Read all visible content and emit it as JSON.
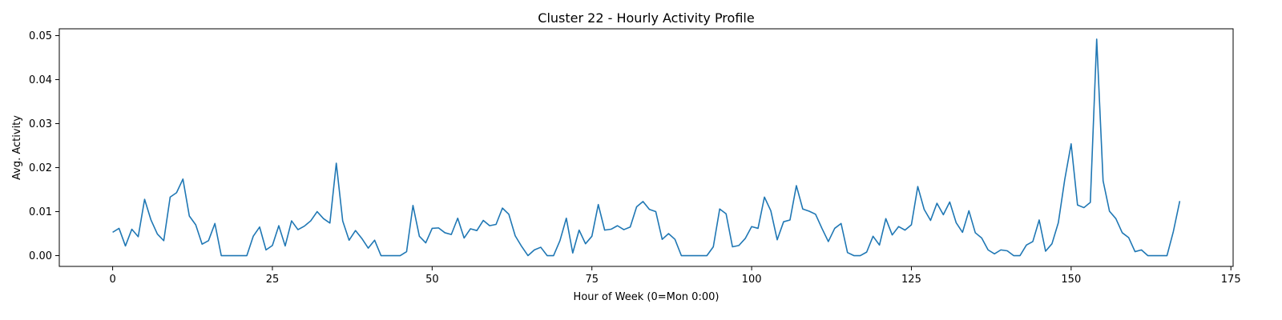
{
  "chart_data": {
    "type": "line",
    "title": "Cluster 22 - Hourly Activity Profile",
    "xlabel": "Hour of Week (0=Mon 0:00)",
    "ylabel": "Avg. Activity",
    "xlim": [
      -8.35,
      175.35
    ],
    "ylim": [
      -0.00245,
      0.05155
    ],
    "xticks": [
      0,
      25,
      50,
      75,
      100,
      125,
      150,
      175
    ],
    "yticks": [
      0.0,
      0.01,
      0.02,
      0.03,
      0.04,
      0.05
    ],
    "xtick_labels": [
      "0",
      "25",
      "50",
      "75",
      "100",
      "125",
      "150",
      "175"
    ],
    "ytick_labels": [
      "0.00",
      "0.01",
      "0.02",
      "0.03",
      "0.04",
      "0.05"
    ],
    "grid": false,
    "color": "#1f77b4",
    "series": [
      {
        "values": [
          0.0053,
          0.0062,
          0.0022,
          0.006,
          0.0043,
          0.0128,
          0.0081,
          0.0049,
          0.0034,
          0.0133,
          0.0143,
          0.0174,
          0.009,
          0.007,
          0.0026,
          0.0034,
          0.0073,
          0.0,
          0.0,
          0.0,
          0.0,
          0.0,
          0.0044,
          0.0065,
          0.0013,
          0.0023,
          0.0068,
          0.0022,
          0.0079,
          0.0059,
          0.0067,
          0.0079,
          0.01,
          0.0084,
          0.0074,
          0.021,
          0.0079,
          0.0035,
          0.0057,
          0.0039,
          0.0017,
          0.0035,
          0.0,
          0.0,
          0.0,
          0.0,
          0.0009,
          0.0114,
          0.0044,
          0.0029,
          0.0062,
          0.0063,
          0.0052,
          0.0048,
          0.0085,
          0.004,
          0.0061,
          0.0057,
          0.008,
          0.0068,
          0.0071,
          0.0108,
          0.0094,
          0.0045,
          0.0021,
          0.0,
          0.0013,
          0.0019,
          0.0,
          0.0,
          0.0034,
          0.0085,
          0.0006,
          0.0058,
          0.0027,
          0.0044,
          0.0116,
          0.0058,
          0.006,
          0.0068,
          0.0059,
          0.0065,
          0.0111,
          0.0123,
          0.0105,
          0.01,
          0.0037,
          0.005,
          0.0037,
          0.0,
          0.0,
          0.0,
          0.0,
          0.0,
          0.002,
          0.0106,
          0.0095,
          0.002,
          0.0023,
          0.0039,
          0.0066,
          0.0062,
          0.0133,
          0.0102,
          0.0036,
          0.0077,
          0.0081,
          0.0159,
          0.0106,
          0.0101,
          0.0094,
          0.0062,
          0.0032,
          0.0062,
          0.0073,
          0.0007,
          0.0,
          0.0,
          0.0008,
          0.0044,
          0.0024,
          0.0084,
          0.0047,
          0.0066,
          0.0058,
          0.007,
          0.0157,
          0.0105,
          0.008,
          0.0119,
          0.0093,
          0.0122,
          0.0075,
          0.0053,
          0.0102,
          0.0052,
          0.004,
          0.0013,
          0.0004,
          0.0013,
          0.0011,
          0.0,
          0.0,
          0.0024,
          0.0032,
          0.0081,
          0.001,
          0.0027,
          0.0075,
          0.0173,
          0.0254,
          0.0115,
          0.0109,
          0.0121,
          0.0492,
          0.017,
          0.0101,
          0.0084,
          0.0052,
          0.0041,
          0.0009,
          0.0013,
          0.0,
          0.0,
          0.0,
          0.0,
          0.0055,
          0.0124
        ]
      }
    ]
  }
}
